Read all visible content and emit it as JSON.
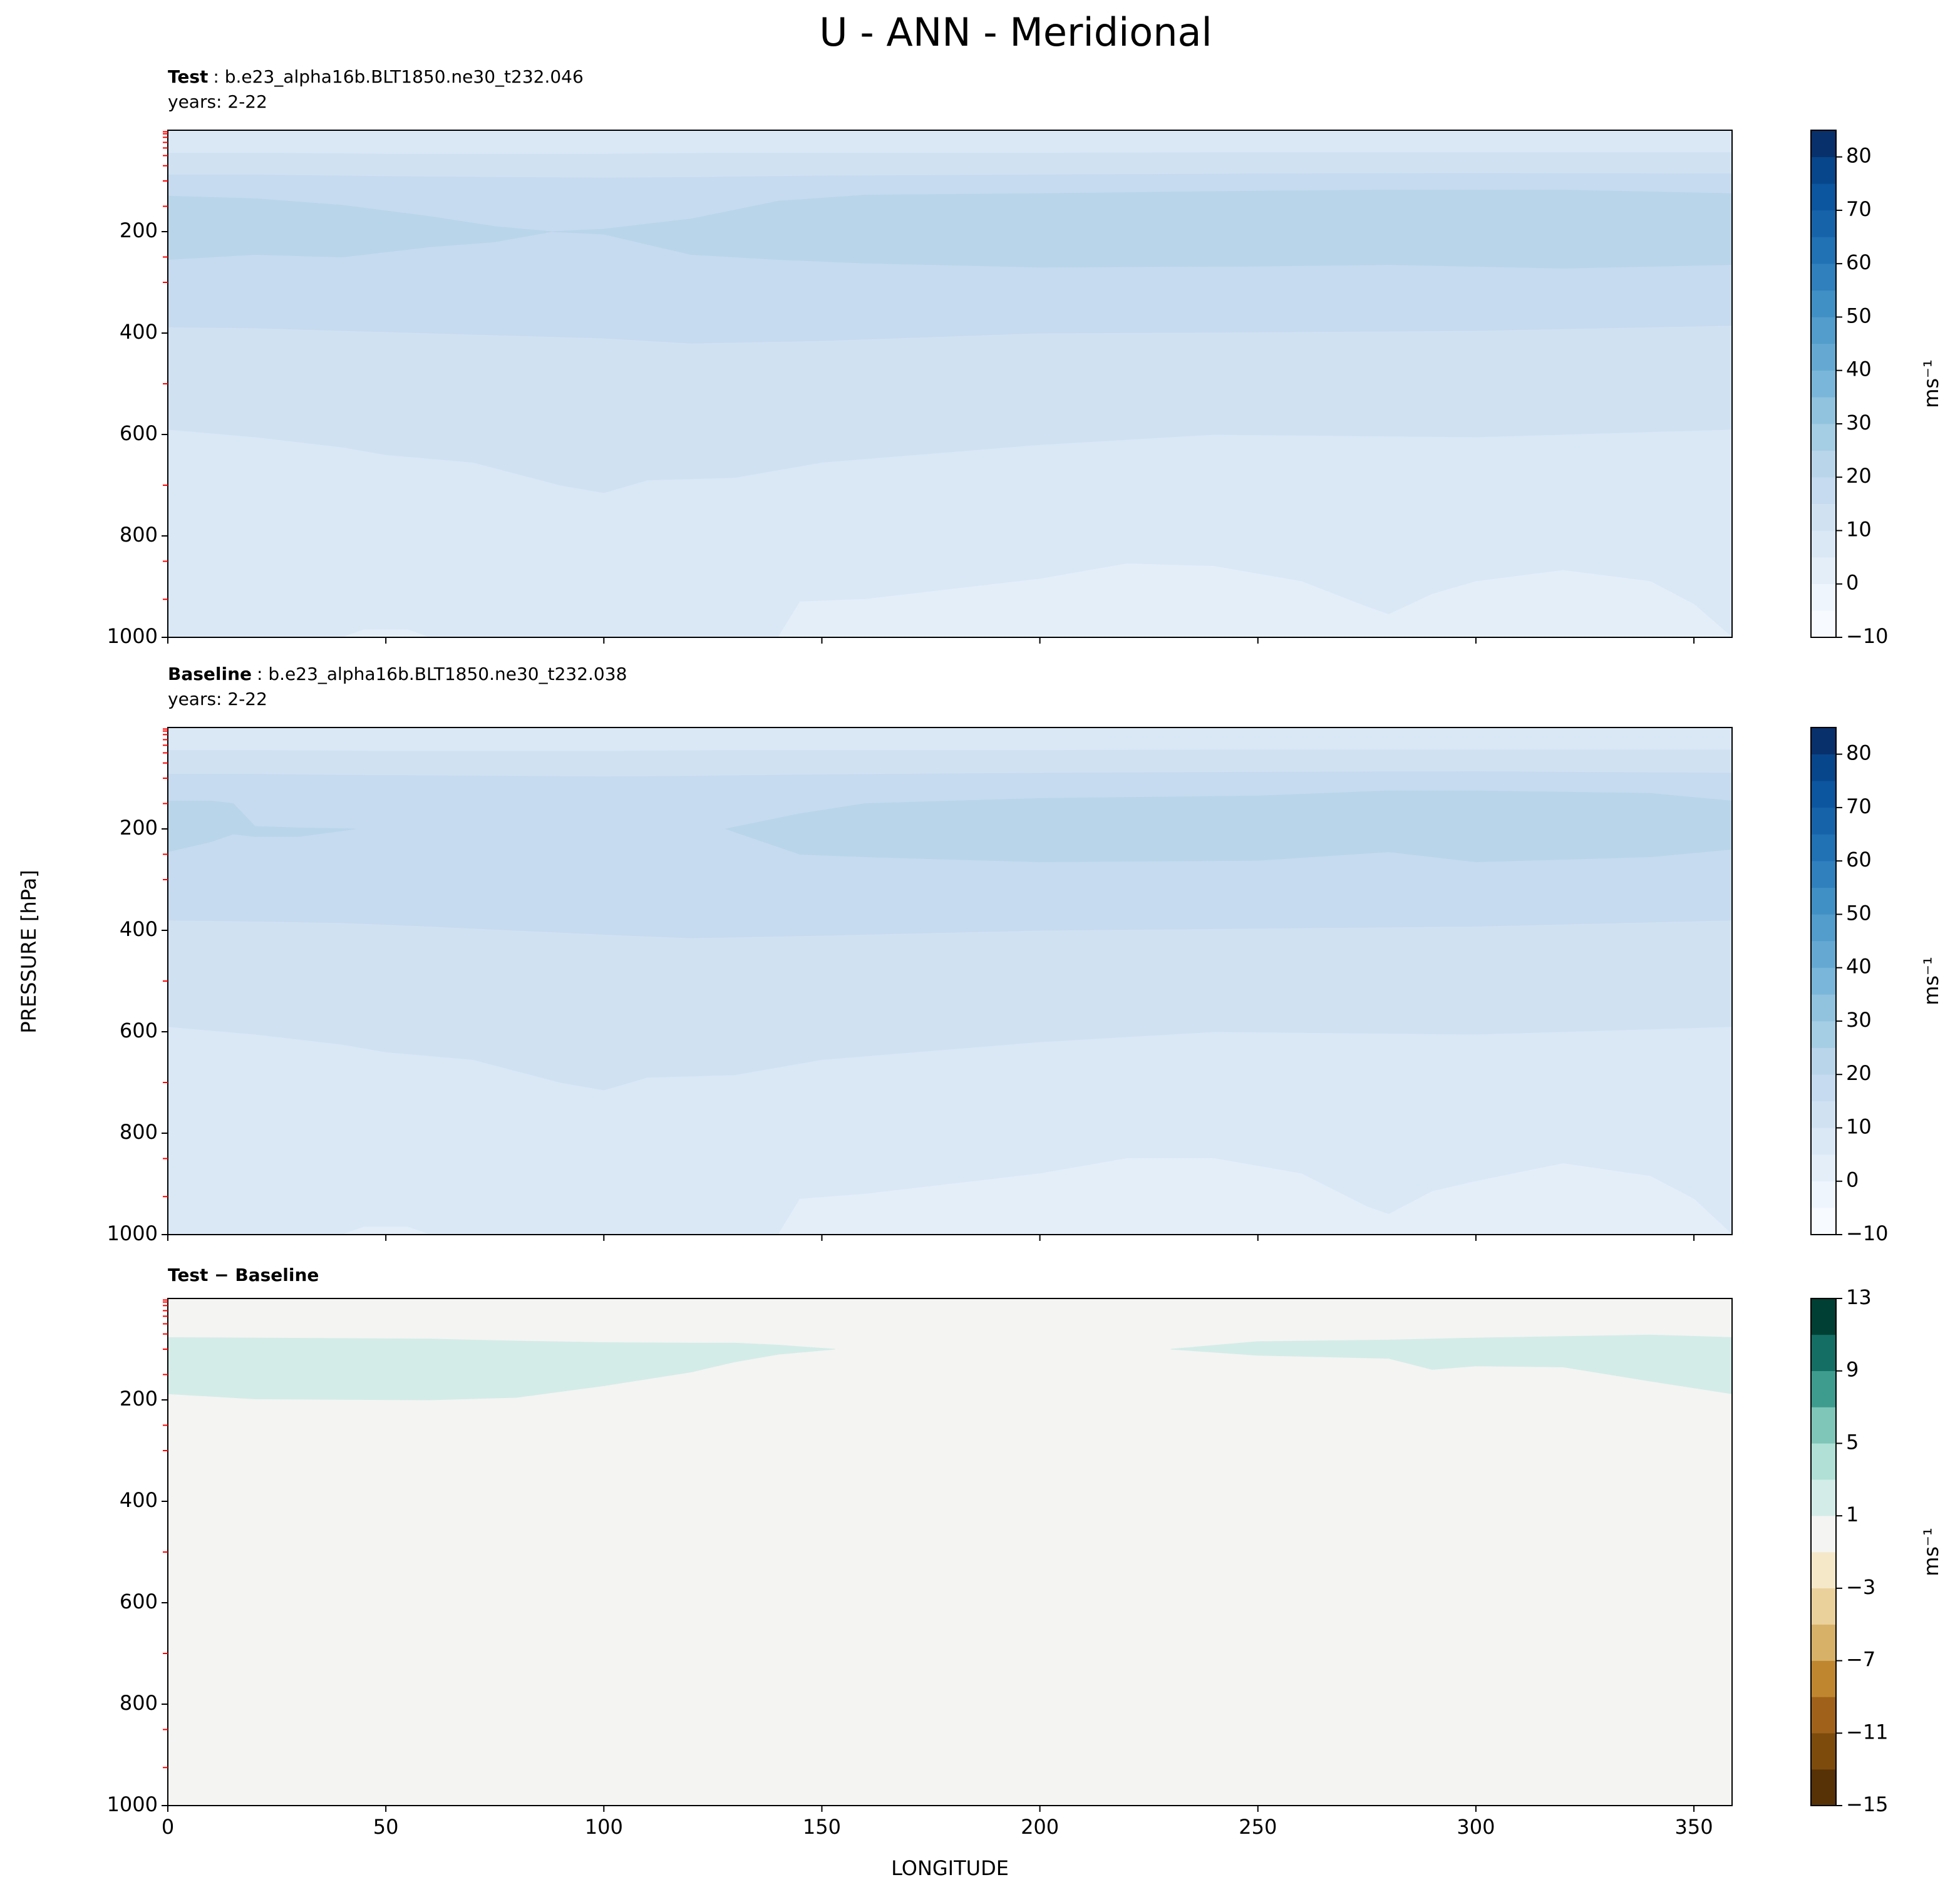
{
  "title": "U - ANN - Meridional",
  "ylabel": "PRESSURE [hPa]",
  "chart_data": [
    {
      "type": "contourf",
      "label": "Test",
      "case": ": b.e23_alpha16b.BLT1850.ne30_t232.046",
      "years": "years: 2-22",
      "xlim": [
        0,
        358.75
      ],
      "ylim": [
        1000,
        0
      ],
      "xticks": [
        0,
        50,
        100,
        150,
        200,
        250,
        300,
        350
      ],
      "yticks": [
        200,
        400,
        600,
        800,
        1000
      ],
      "minor_yticks": [
        3,
        7,
        14,
        24,
        35,
        50,
        70,
        100,
        150,
        250,
        300,
        500,
        700,
        850,
        925
      ],
      "minor_tick_color": "red",
      "levels": [
        -10,
        -5,
        0,
        5,
        10,
        15,
        20,
        25,
        30,
        35,
        40,
        45,
        50,
        55,
        60,
        65,
        70,
        75,
        80,
        85
      ],
      "colors": [
        "#f7fbff",
        "#eef5fc",
        "#e3eef9",
        "#dae8f6",
        "#d0e2f2",
        "#c6dbef",
        "#b9d5ea",
        "#a5cde3",
        "#91c3de",
        "#7ab6d9",
        "#65a9d3",
        "#529dcc",
        "#4090c5",
        "#3080bd",
        "#2171b5",
        "#1763aa",
        "#0c559f",
        "#08468b",
        "#08306b"
      ],
      "cbar_ticks": [
        {
          "value": -10,
          "label": "−10"
        },
        0,
        10,
        20,
        30,
        40,
        50,
        60,
        70,
        80
      ],
      "cbar_label": "ms⁻¹",
      "bands": [
        {
          "range": [
            5,
            10
          ],
          "x": [
            0,
            358.75
          ],
          "top": [
            0,
            0
          ],
          "bottom": [
            1000,
            1000
          ]
        },
        {
          "range": [
            10,
            15
          ],
          "x": [
            0,
            20,
            40,
            50,
            70,
            90,
            100,
            110,
            130,
            150,
            200,
            240,
            300,
            358.75
          ],
          "top": [
            45,
            45,
            46,
            47,
            47,
            47,
            47,
            46,
            45,
            45,
            45,
            44,
            44,
            44
          ],
          "bottom": [
            590,
            605,
            625,
            640,
            655,
            700,
            715,
            690,
            685,
            655,
            620,
            600,
            605,
            590
          ]
        },
        {
          "range": [
            15,
            20
          ],
          "x": [
            0,
            20,
            40,
            60,
            80,
            100,
            120,
            150,
            200,
            250,
            300,
            358.75
          ],
          "top": [
            88,
            88,
            90,
            92,
            93,
            94,
            93,
            90,
            88,
            86,
            85,
            86
          ],
          "bottom": [
            388,
            390,
            395,
            400,
            405,
            410,
            420,
            415,
            400,
            398,
            395,
            385
          ]
        },
        {
          "range": [
            20,
            25
          ],
          "x": [
            0,
            20,
            40,
            60,
            75,
            88,
            100,
            120,
            140,
            160,
            200,
            250,
            280,
            320,
            358.75
          ],
          "top": [
            130,
            135,
            148,
            170,
            190,
            200,
            195,
            175,
            140,
            128,
            125,
            120,
            118,
            118,
            125
          ],
          "bottom": [
            255,
            245,
            250,
            230,
            220,
            200,
            205,
            245,
            255,
            262,
            270,
            268,
            265,
            272,
            265
          ]
        },
        {
          "range": [
            0,
            5
          ],
          "x": [
            0,
            40,
            45,
            55,
            60,
            140,
            145,
            160,
            180,
            200,
            220,
            240,
            260,
            275,
            280,
            290,
            300,
            320,
            340,
            350,
            358.75
          ],
          "top": [
            1000,
            1000,
            985,
            985,
            1000,
            1000,
            930,
            925,
            905,
            885,
            855,
            860,
            890,
            940,
            955,
            915,
            890,
            868,
            890,
            935,
            1000
          ],
          "bottom": [
            1000,
            1000,
            1000,
            1000,
            1000,
            1000,
            1000,
            1000,
            1000,
            1000,
            1000,
            1000,
            1000,
            1000,
            1000,
            1000,
            1000,
            1000,
            1000,
            1000,
            1000
          ]
        }
      ]
    },
    {
      "type": "contourf",
      "label": "Baseline",
      "case": ": b.e23_alpha16b.BLT1850.ne30_t232.038",
      "years": "years: 2-22",
      "xlim": [
        0,
        358.75
      ],
      "ylim": [
        1000,
        0
      ],
      "xticks": [
        0,
        50,
        100,
        150,
        200,
        250,
        300,
        350
      ],
      "yticks": [
        200,
        400,
        600,
        800,
        1000
      ],
      "minor_yticks": [
        3,
        7,
        14,
        24,
        35,
        50,
        70,
        100,
        150,
        250,
        300,
        500,
        700,
        850,
        925
      ],
      "minor_tick_color": "red",
      "levels": [
        -10,
        -5,
        0,
        5,
        10,
        15,
        20,
        25,
        30,
        35,
        40,
        45,
        50,
        55,
        60,
        65,
        70,
        75,
        80,
        85
      ],
      "colors": [
        "#f7fbff",
        "#eef5fc",
        "#e3eef9",
        "#dae8f6",
        "#d0e2f2",
        "#c6dbef",
        "#b9d5ea",
        "#a5cde3",
        "#91c3de",
        "#7ab6d9",
        "#65a9d3",
        "#529dcc",
        "#4090c5",
        "#3080bd",
        "#2171b5",
        "#1763aa",
        "#0c559f",
        "#08468b",
        "#08306b"
      ],
      "cbar_ticks": [
        {
          "value": -10,
          "label": "−10"
        },
        0,
        10,
        20,
        30,
        40,
        50,
        60,
        70,
        80
      ],
      "cbar_label": "ms⁻¹",
      "bands": [
        {
          "range": [
            5,
            10
          ],
          "x": [
            0,
            358.75
          ],
          "top": [
            0,
            0
          ],
          "bottom": [
            1000,
            1000
          ]
        },
        {
          "range": [
            10,
            15
          ],
          "x": [
            0,
            20,
            40,
            50,
            70,
            90,
            100,
            110,
            130,
            150,
            200,
            240,
            300,
            358.75
          ],
          "top": [
            45,
            45,
            46,
            47,
            47,
            47,
            47,
            46,
            45,
            45,
            45,
            44,
            44,
            44
          ],
          "bottom": [
            590,
            605,
            625,
            640,
            655,
            700,
            715,
            690,
            685,
            655,
            620,
            600,
            605,
            590
          ]
        },
        {
          "range": [
            15,
            20
          ],
          "x": [
            0,
            20,
            40,
            60,
            80,
            100,
            120,
            150,
            200,
            250,
            300,
            358.75
          ],
          "top": [
            92,
            92,
            94,
            95,
            96,
            97,
            96,
            93,
            90,
            88,
            87,
            90
          ],
          "bottom": [
            380,
            382,
            385,
            392,
            400,
            408,
            415,
            410,
            400,
            396,
            392,
            380
          ]
        },
        {
          "range": [
            20,
            25
          ],
          "x": [
            0,
            10,
            15,
            20,
            30,
            43
          ],
          "top": [
            145,
            145,
            150,
            195,
            198,
            200
          ],
          "bottom": [
            245,
            225,
            210,
            215,
            215,
            200
          ]
        },
        {
          "range": [
            20,
            25
          ],
          "x": [
            128,
            145,
            160,
            200,
            250,
            280,
            300,
            340,
            358.75
          ],
          "top": [
            200,
            170,
            150,
            140,
            135,
            125,
            125,
            130,
            145
          ],
          "bottom": [
            200,
            250,
            255,
            265,
            262,
            245,
            265,
            255,
            240
          ]
        },
        {
          "range": [
            0,
            5
          ],
          "x": [
            0,
            40,
            45,
            55,
            60,
            140,
            145,
            160,
            180,
            200,
            220,
            240,
            260,
            275,
            280,
            290,
            300,
            320,
            340,
            350,
            358.75
          ],
          "top": [
            1000,
            1000,
            985,
            985,
            1000,
            1000,
            930,
            920,
            900,
            880,
            850,
            850,
            880,
            945,
            960,
            915,
            895,
            860,
            885,
            930,
            1000
          ],
          "bottom": [
            1000,
            1000,
            1000,
            1000,
            1000,
            1000,
            1000,
            1000,
            1000,
            1000,
            1000,
            1000,
            1000,
            1000,
            1000,
            1000,
            1000,
            1000,
            1000,
            1000,
            1000
          ]
        }
      ]
    },
    {
      "type": "contourf",
      "label": "Test − Baseline",
      "xlabel": "LONGITUDE",
      "xlim": [
        0,
        358.75
      ],
      "ylim": [
        1000,
        0
      ],
      "xticks": [
        0,
        50,
        100,
        150,
        200,
        250,
        300,
        350
      ],
      "yticks": [
        200,
        400,
        600,
        800,
        1000
      ],
      "minor_yticks": [
        3,
        7,
        14,
        24,
        35,
        50,
        70,
        100,
        150,
        250,
        300,
        500,
        700,
        850,
        925
      ],
      "minor_tick_color": "red",
      "levels": [
        -15,
        -13,
        -11,
        -9,
        -7,
        -5,
        -3,
        -1,
        1,
        3,
        5,
        7,
        9,
        11,
        13
      ],
      "colors": [
        "#573206",
        "#7d4b0c",
        "#a0621a",
        "#c0862f",
        "#d7b168",
        "#ead09b",
        "#f5e8c9",
        "#f4f4f2",
        "#d3ece8",
        "#b0e0d6",
        "#7fc6b8",
        "#3e9c8f",
        "#146e64",
        "#003f33"
      ],
      "cbar_ticks": [
        {
          "value": -15,
          "label": "−15"
        },
        {
          "value": -11,
          "label": "−11"
        },
        {
          "value": -7,
          "label": "−7"
        },
        {
          "value": -3,
          "label": "−3"
        },
        1,
        5,
        9,
        13
      ],
      "cbar_label": "ms⁻¹",
      "bands": [
        {
          "range": [
            -1,
            1
          ],
          "x": [
            0,
            358.75
          ],
          "top": [
            0,
            0
          ],
          "bottom": [
            1000,
            1000
          ]
        },
        {
          "range": [
            1,
            3
          ],
          "x": [
            0,
            20,
            60,
            80,
            100,
            120,
            130,
            140,
            153
          ],
          "top": [
            77,
            78,
            80,
            84,
            87,
            88,
            88,
            92,
            100
          ],
          "bottom": [
            188,
            198,
            200,
            195,
            172,
            145,
            125,
            110,
            100
          ]
        },
        {
          "range": [
            1,
            3
          ],
          "x": [
            230,
            250,
            280,
            290,
            300,
            320,
            340,
            358.75
          ],
          "top": [
            100,
            85,
            82,
            80,
            78,
            75,
            72,
            77
          ],
          "bottom": [
            100,
            112,
            118,
            140,
            133,
            135,
            163,
            188
          ]
        }
      ]
    }
  ]
}
